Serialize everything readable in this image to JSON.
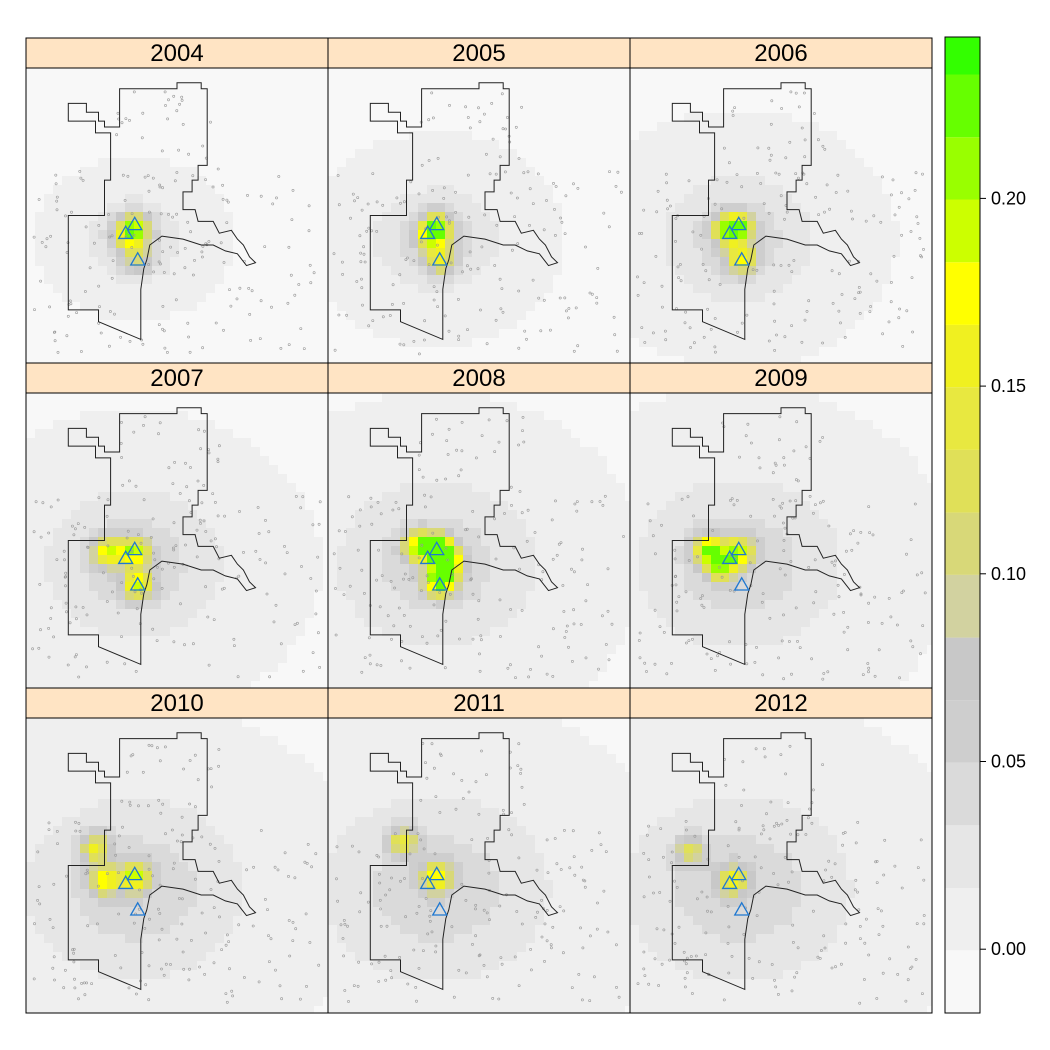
{
  "chart_data": {
    "type": "heatmap",
    "title": "",
    "panels": [
      {
        "label": "2004",
        "hotspots": [
          {
            "x": 0.36,
            "y": 0.54,
            "v": 0.12
          },
          {
            "x": 0.34,
            "y": 0.57,
            "v": 0.1
          },
          {
            "x": 0.37,
            "y": 0.65,
            "v": 0.08
          }
        ],
        "spread": 0.14
      },
      {
        "label": "2005",
        "hotspots": [
          {
            "x": 0.36,
            "y": 0.54,
            "v": 0.14
          },
          {
            "x": 0.34,
            "y": 0.57,
            "v": 0.11
          },
          {
            "x": 0.37,
            "y": 0.65,
            "v": 0.12
          }
        ],
        "spread": 0.18
      },
      {
        "label": "2006",
        "hotspots": [
          {
            "x": 0.36,
            "y": 0.54,
            "v": 0.15
          },
          {
            "x": 0.32,
            "y": 0.55,
            "v": 0.13
          },
          {
            "x": 0.37,
            "y": 0.65,
            "v": 0.14
          }
        ],
        "spread": 0.22
      },
      {
        "label": "2007",
        "hotspots": [
          {
            "x": 0.36,
            "y": 0.54,
            "v": 0.16
          },
          {
            "x": 0.27,
            "y": 0.54,
            "v": 0.15
          },
          {
            "x": 0.37,
            "y": 0.65,
            "v": 0.15
          }
        ],
        "spread": 0.26
      },
      {
        "label": "2008",
        "hotspots": [
          {
            "x": 0.37,
            "y": 0.53,
            "v": 0.21
          },
          {
            "x": 0.3,
            "y": 0.52,
            "v": 0.17
          },
          {
            "x": 0.37,
            "y": 0.64,
            "v": 0.2
          },
          {
            "x": 0.4,
            "y": 0.58,
            "v": 0.16
          }
        ],
        "spread": 0.29
      },
      {
        "label": "2009",
        "hotspots": [
          {
            "x": 0.36,
            "y": 0.54,
            "v": 0.16
          },
          {
            "x": 0.26,
            "y": 0.53,
            "v": 0.17
          },
          {
            "x": 0.3,
            "y": 0.59,
            "v": 0.15
          }
        ],
        "spread": 0.3
      },
      {
        "label": "2010",
        "hotspots": [
          {
            "x": 0.36,
            "y": 0.54,
            "v": 0.16
          },
          {
            "x": 0.26,
            "y": 0.55,
            "v": 0.14
          },
          {
            "x": 0.23,
            "y": 0.44,
            "v": 0.12
          }
        ],
        "spread": 0.32
      },
      {
        "label": "2011",
        "hotspots": [
          {
            "x": 0.36,
            "y": 0.54,
            "v": 0.15
          },
          {
            "x": 0.25,
            "y": 0.42,
            "v": 0.12
          }
        ],
        "spread": 0.33
      },
      {
        "label": "2012",
        "hotspots": [
          {
            "x": 0.34,
            "y": 0.55,
            "v": 0.13
          },
          {
            "x": 0.2,
            "y": 0.45,
            "v": 0.1
          }
        ],
        "spread": 0.33
      }
    ],
    "colorbar": {
      "ticks": [
        "0.00",
        "0.05",
        "0.10",
        "0.15",
        "0.20"
      ],
      "tick_values": [
        0.0,
        0.05,
        0.1,
        0.15,
        0.2
      ],
      "range": [
        -0.017,
        0.243
      ],
      "breaks": [
        -0.017,
        -0.0003,
        0.0163,
        0.033,
        0.0497,
        0.0663,
        0.083,
        0.0997,
        0.1163,
        0.133,
        0.1497,
        0.1663,
        0.183,
        0.1997,
        0.2163,
        0.233,
        0.243
      ],
      "colors": [
        "#f8f8f8",
        "#efefef",
        "#e6e6e6",
        "#dadada",
        "#cecece",
        "#c8c8c8",
        "#d2d2a0",
        "#d8d878",
        "#e0e058",
        "#e8e840",
        "#f0f020",
        "#ffff00",
        "#ccff00",
        "#99ff00",
        "#66ff00",
        "#33ff00",
        "#00ff33"
      ]
    },
    "markers": {
      "shape": "triangle",
      "color": "#1f78d1",
      "points": [
        {
          "x": 0.36,
          "y": 0.53
        },
        {
          "x": 0.33,
          "y": 0.56
        },
        {
          "x": 0.37,
          "y": 0.65
        }
      ]
    },
    "legend": "right"
  }
}
